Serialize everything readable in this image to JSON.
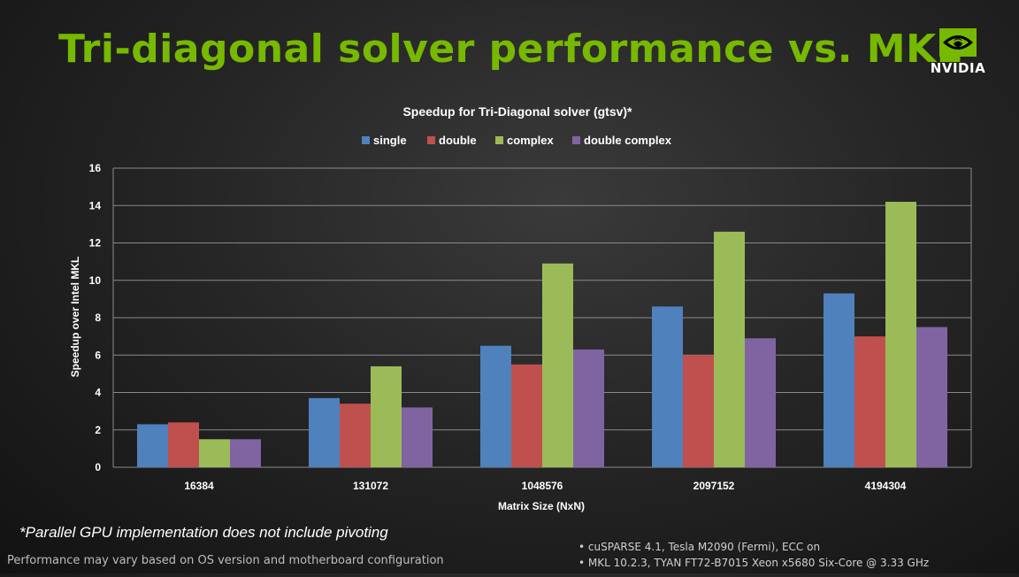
{
  "slide": {
    "title": "Tri-diagonal solver performance vs. MKL",
    "logo_text": "NVIDIA",
    "footnote": "*Parallel GPU implementation does not include pivoting",
    "disclaimer": "Performance may vary based on OS version and motherboard configuration",
    "specs": [
      "cuSPARSE 4.1, Tesla M2090 (Fermi), ECC on",
      "MKL 10.2.3, TYAN FT72-B7015 Xeon x5680 Six-Core @ 3.33 GHz"
    ],
    "colors": {
      "title": "#76b900",
      "background": "#262626"
    }
  },
  "chart_data": {
    "type": "bar",
    "title": "Speedup for Tri-Diagonal solver (gtsv)*",
    "xlabel": "Matrix Size (NxN)",
    "ylabel": "Speedup over Intel MKL",
    "categories": [
      "16384",
      "131072",
      "1048576",
      "2097152",
      "4194304"
    ],
    "ylim": [
      0,
      16
    ],
    "yticks": [
      0,
      2,
      4,
      6,
      8,
      10,
      12,
      14,
      16
    ],
    "grid": true,
    "legend": "top",
    "series": [
      {
        "name": "single",
        "color": "#4f81bd",
        "values": [
          2.3,
          3.7,
          6.5,
          8.6,
          9.3
        ]
      },
      {
        "name": "double",
        "color": "#c0504d",
        "values": [
          2.4,
          3.4,
          5.5,
          6.0,
          7.0
        ]
      },
      {
        "name": "complex",
        "color": "#9bbb59",
        "values": [
          1.5,
          5.4,
          10.9,
          12.6,
          14.2
        ]
      },
      {
        "name": "double complex",
        "color": "#8064a2",
        "values": [
          1.5,
          3.2,
          6.3,
          6.9,
          7.5
        ]
      }
    ]
  }
}
